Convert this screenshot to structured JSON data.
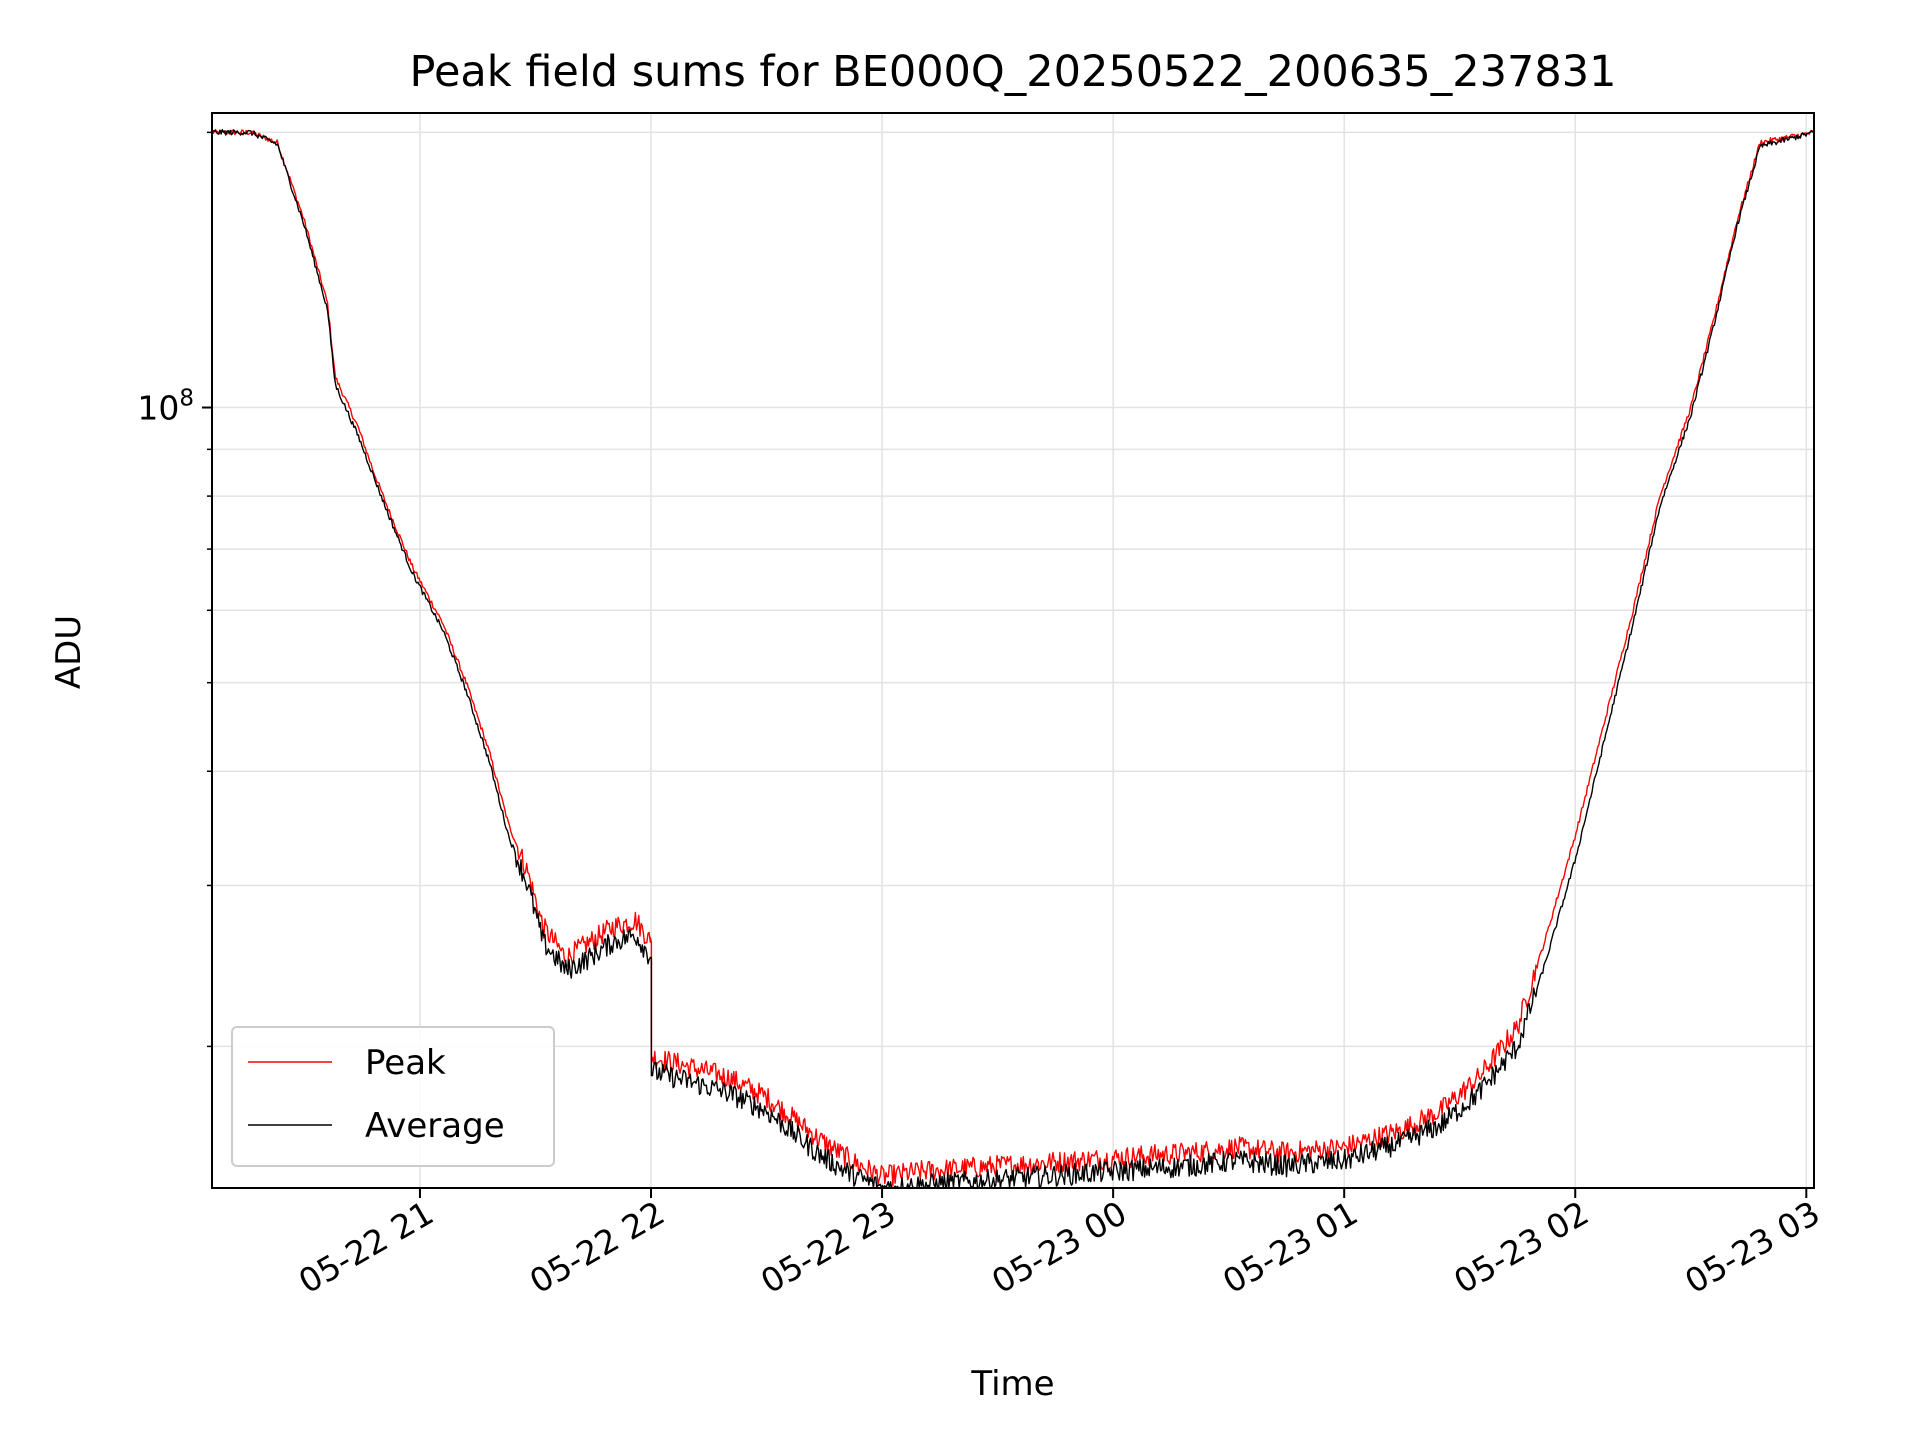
{
  "chart_data": {
    "type": "line",
    "title": "Peak field sums for BE000Q_20250522_200635_237831",
    "xlabel": "Time",
    "ylabel": "ADU",
    "yscale": "log",
    "grid": true,
    "legend_position": "bottom-left",
    "x_tick_labels": [
      "05-22 21",
      "05-22 22",
      "05-22 23",
      "05-23 00",
      "05-23 01",
      "05-23 02",
      "05-23 03"
    ],
    "y_tick_labels": [
      {
        "base": "10",
        "exponent": "8"
      }
    ],
    "xlim": [
      "2025-05-22 20:06",
      "2025-05-23 03:02"
    ],
    "ylim": [
      14000000,
      210000000
    ],
    "series": [
      {
        "name": "Peak",
        "color": "#ff0000",
        "x": [
          "2025-05-22 20:06",
          "2025-05-22 20:16",
          "2025-05-22 20:23",
          "2025-05-22 20:30",
          "2025-05-22 20:36",
          "2025-05-22 20:38",
          "2025-05-22 20:44",
          "2025-05-22 20:48",
          "2025-05-22 20:52",
          "2025-05-22 20:58",
          "2025-05-22 21:06",
          "2025-05-22 21:12",
          "2025-05-22 21:18",
          "2025-05-22 21:23",
          "2025-05-22 21:28",
          "2025-05-22 21:32",
          "2025-05-22 21:38",
          "2025-05-22 21:44",
          "2025-05-22 21:50",
          "2025-05-22 21:56",
          "2025-05-22 22:00",
          "2025-05-22 22:00",
          "2025-05-22 22:10",
          "2025-05-22 22:20",
          "2025-05-22 22:30",
          "2025-05-22 22:36",
          "2025-05-22 22:44",
          "2025-05-22 22:52",
          "2025-05-22 23:00",
          "2025-05-22 23:10",
          "2025-05-22 23:20",
          "2025-05-22 23:40",
          "2025-05-23 00:00",
          "2025-05-23 00:20",
          "2025-05-23 00:32",
          "2025-05-23 00:45",
          "2025-05-23 01:00",
          "2025-05-23 01:15",
          "2025-05-23 01:25",
          "2025-05-23 01:35",
          "2025-05-23 01:45",
          "2025-05-23 01:52",
          "2025-05-23 02:00",
          "2025-05-23 02:08",
          "2025-05-23 02:15",
          "2025-05-23 02:22",
          "2025-05-23 02:30",
          "2025-05-23 02:36",
          "2025-05-23 02:42",
          "2025-05-23 02:48",
          "2025-05-23 03:02"
        ],
        "y": [
          200000000,
          200000000,
          195000000,
          160000000,
          130000000,
          108000000,
          95000000,
          85000000,
          77000000,
          67000000,
          58000000,
          50000000,
          42000000,
          35000000,
          31000000,
          27000000,
          25000000,
          26000000,
          27000000,
          27500000,
          26000000,
          19500000,
          19000000,
          18500000,
          17600000,
          16800000,
          15800000,
          15000000,
          14400000,
          14600000,
          14700000,
          14900000,
          15100000,
          15300000,
          15500000,
          15300000,
          15500000,
          16200000,
          17000000,
          18500000,
          21000000,
          26000000,
          34000000,
          46000000,
          60000000,
          80000000,
          100000000,
          125000000,
          160000000,
          195000000,
          200000000
        ]
      },
      {
        "name": "Average",
        "color": "#000000",
        "x": [
          "2025-05-22 20:06",
          "2025-05-22 20:16",
          "2025-05-22 20:23",
          "2025-05-22 20:30",
          "2025-05-22 20:36",
          "2025-05-22 20:38",
          "2025-05-22 20:44",
          "2025-05-22 20:48",
          "2025-05-22 20:52",
          "2025-05-22 20:58",
          "2025-05-22 21:06",
          "2025-05-22 21:12",
          "2025-05-22 21:18",
          "2025-05-22 21:23",
          "2025-05-22 21:28",
          "2025-05-22 21:32",
          "2025-05-22 21:38",
          "2025-05-22 21:44",
          "2025-05-22 21:50",
          "2025-05-22 21:56",
          "2025-05-22 22:00",
          "2025-05-22 22:00",
          "2025-05-22 22:10",
          "2025-05-22 22:20",
          "2025-05-22 22:30",
          "2025-05-22 22:36",
          "2025-05-22 22:44",
          "2025-05-22 22:52",
          "2025-05-22 23:00",
          "2025-05-22 23:10",
          "2025-05-22 23:20",
          "2025-05-22 23:40",
          "2025-05-23 00:00",
          "2025-05-23 00:20",
          "2025-05-23 00:32",
          "2025-05-23 00:45",
          "2025-05-23 01:00",
          "2025-05-23 01:15",
          "2025-05-23 01:25",
          "2025-05-23 01:35",
          "2025-05-23 01:45",
          "2025-05-23 01:52",
          "2025-05-23 02:00",
          "2025-05-23 02:08",
          "2025-05-23 02:15",
          "2025-05-23 02:22",
          "2025-05-23 02:30",
          "2025-05-23 02:36",
          "2025-05-23 02:42",
          "2025-05-23 02:48",
          "2025-05-23 03:02"
        ],
        "y": [
          200000000,
          200000000,
          194000000,
          158000000,
          128000000,
          106000000,
          93000000,
          84000000,
          76000000,
          66000000,
          57000000,
          49000000,
          41000000,
          34000000,
          30000000,
          26000000,
          24200000,
          25000000,
          26000000,
          26500000,
          25000000,
          18800000,
          18300000,
          17800000,
          17000000,
          16200000,
          15200000,
          14500000,
          14000000,
          14100000,
          14200000,
          14400000,
          14600000,
          14800000,
          15000000,
          14800000,
          15000000,
          15700000,
          16400000,
          17800000,
          20000000,
          24500000,
          32000000,
          44000000,
          58000000,
          78000000,
          98000000,
          123000000,
          158000000,
          193000000,
          200000000
        ]
      }
    ]
  }
}
